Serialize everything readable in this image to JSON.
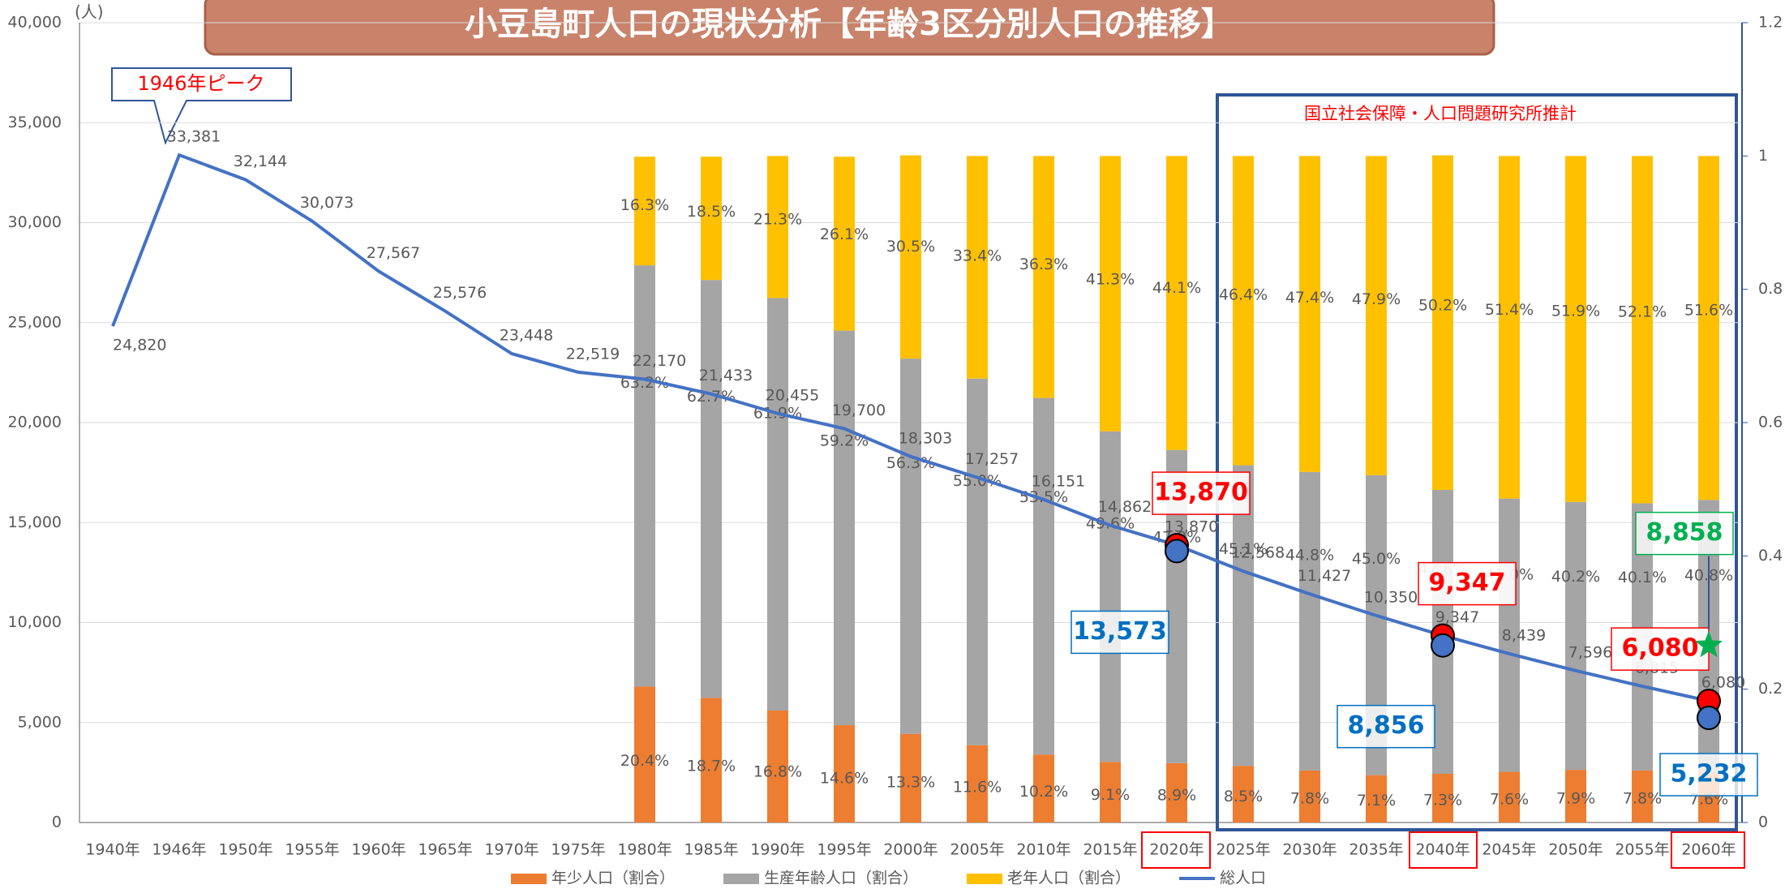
{
  "chart_data": {
    "type": "bar",
    "title": "小豆島町人口の現状分析【年齢3区分別人口の推移】",
    "y_unit": "(人)",
    "categories": [
      "1940年",
      "1946年",
      "1950年",
      "1955年",
      "1960年",
      "1965年",
      "1970年",
      "1975年",
      "1980年",
      "1985年",
      "1990年",
      "1995年",
      "2000年",
      "2005年",
      "2010年",
      "2015年",
      "2020年",
      "2025年",
      "2030年",
      "2035年",
      "2040年",
      "2045年",
      "2050年",
      "2055年",
      "2060年"
    ],
    "series": [
      {
        "name": "年少人口（割合）",
        "type": "bar",
        "axis": "y2",
        "color": "#ed7d31",
        "values": [
          null,
          null,
          null,
          null,
          null,
          null,
          null,
          null,
          0.204,
          0.187,
          0.168,
          0.146,
          0.133,
          0.116,
          0.102,
          0.091,
          0.089,
          0.085,
          0.078,
          0.071,
          0.073,
          0.076,
          0.079,
          0.078,
          0.076
        ],
        "value_labels": [
          null,
          null,
          null,
          null,
          null,
          null,
          null,
          null,
          "20.4%",
          "18.7%",
          "16.8%",
          "14.6%",
          "13.3%",
          "11.6%",
          "10.2%",
          "9.1%",
          "8.9%",
          "8.5%",
          "7.8%",
          "7.1%",
          "7.3%",
          "7.6%",
          "7.9%",
          "7.8%",
          "7.6%"
        ]
      },
      {
        "name": "生産年齢人口（割合）",
        "type": "bar",
        "axis": "y2",
        "color": "#a5a5a5",
        "values": [
          null,
          null,
          null,
          null,
          null,
          null,
          null,
          null,
          0.632,
          0.627,
          0.619,
          0.592,
          0.563,
          0.55,
          0.535,
          0.496,
          0.47,
          0.451,
          0.448,
          0.45,
          0.426,
          0.41,
          0.402,
          0.401,
          0.408
        ],
        "value_labels": [
          null,
          null,
          null,
          null,
          null,
          null,
          null,
          null,
          "63.2%",
          "62.7%",
          "61.9%",
          "59.2%",
          "56.3%",
          "55.0%",
          "53.5%",
          "49.6%",
          "47.0%",
          "45.1%",
          "44.8%",
          "45.0%",
          "42.6%",
          "41.0%",
          "40.2%",
          "40.1%",
          "40.8%"
        ]
      },
      {
        "name": "老年人口（割合）",
        "type": "bar",
        "axis": "y2",
        "color": "#ffc000",
        "values": [
          null,
          null,
          null,
          null,
          null,
          null,
          null,
          null,
          0.163,
          0.185,
          0.213,
          0.261,
          0.305,
          0.334,
          0.363,
          0.413,
          0.441,
          0.464,
          0.474,
          0.479,
          0.502,
          0.514,
          0.519,
          0.521,
          0.516
        ],
        "value_labels": [
          null,
          null,
          null,
          null,
          null,
          null,
          null,
          null,
          "16.3%",
          "18.5%",
          "21.3%",
          "26.1%",
          "30.5%",
          "33.4%",
          "36.3%",
          "41.3%",
          "44.1%",
          "46.4%",
          "47.4%",
          "47.9%",
          "50.2%",
          "51.4%",
          "51.9%",
          "52.1%",
          "51.6%"
        ]
      },
      {
        "name": "総人口",
        "type": "line",
        "color": "#4472c4",
        "values": [
          24820,
          33381,
          32144,
          30073,
          27567,
          25576,
          23448,
          22519,
          22170,
          21433,
          20455,
          19700,
          18303,
          17257,
          16151,
          14862,
          13870,
          12568,
          11427,
          10350,
          9347,
          8439,
          7596,
          6815,
          6080
        ],
        "value_labels": [
          "24,820",
          "33,381",
          "32,144",
          "30,073",
          "27,567",
          "25,576",
          "23,448",
          "22,519",
          "22,170",
          "21,433",
          "20,455",
          "19,700",
          "18,303",
          "17,257",
          "16,151",
          "14,862",
          "13,870",
          "12,568",
          "11,427",
          "10,350",
          "9,347",
          "8,439",
          "7,596",
          "6,815",
          "6,080"
        ]
      }
    ],
    "ylim": [
      0,
      40000
    ],
    "yticks": [
      0,
      {
        "value": 5000,
        "label": "5,000"
      },
      {
        "value": 10000,
        "label": "10,000"
      },
      {
        "value": 15000,
        "label": "15,000"
      },
      {
        "value": 20000,
        "label": "20,000"
      },
      {
        "value": 25000,
        "label": "25,000"
      },
      {
        "value": 30000,
        "label": "30,000"
      },
      {
        "value": 35000,
        "label": "35,000"
      },
      {
        "value": 40000,
        "label": "40,000"
      }
    ],
    "y2lim": [
      0,
      1.2
    ],
    "y2ticks": [
      0,
      0.2,
      0.4,
      0.6,
      0.8,
      1,
      1.2
    ],
    "grid": true,
    "legend": "bottom",
    "annotations": [
      {
        "text": "1946年ピーク"
      },
      {
        "text": "国立社会保障・人口問題研究所推計"
      },
      {
        "x": "2020年",
        "value": 13870,
        "label": "13,870",
        "color": "#ff0000"
      },
      {
        "x": "2020年",
        "value": 13573,
        "label": "13,573",
        "color": "#0070c0"
      },
      {
        "x": "2040年",
        "value": 9347,
        "label": "9,347",
        "color": "#ff0000"
      },
      {
        "x": "2040年",
        "value": 8856,
        "label": "8,856",
        "color": "#0070c0"
      },
      {
        "x": "2060年",
        "value": 6080,
        "label": "6,080",
        "color": "#ff0000"
      },
      {
        "x": "2060年",
        "value": 5232,
        "label": "5,232",
        "color": "#0070c0"
      },
      {
        "x": "2060年",
        "value": 8858,
        "label": "8,858",
        "color": "#00b050"
      }
    ]
  }
}
